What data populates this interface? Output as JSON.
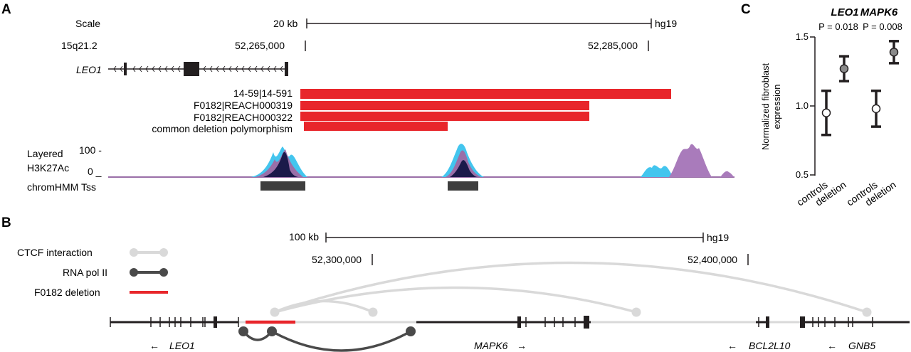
{
  "panel_a": {
    "letter": "A",
    "scale_label": "Scale",
    "scale_bar_text": "20 kb",
    "assembly": "hg19",
    "band": "15q21.2",
    "coord_left": "52,265,000",
    "coord_right": "52,285,000",
    "gene": "LEO1",
    "deletions": [
      {
        "label": "14-59|14-591"
      },
      {
        "label": "F0182|REACH000319"
      },
      {
        "label": "F0182|REACH000322"
      },
      {
        "label": "common deletion polymorphism"
      }
    ],
    "track_label_line1": "Layered",
    "track_label_line2": "H3K27Ac",
    "track_max": "100 -",
    "track_min": "0 _",
    "chromhmm_label": "chromHMM Tss",
    "deletion_color": "#e8262b"
  },
  "panel_b": {
    "letter": "B",
    "scale_bar_text": "100 kb",
    "assembly": "hg19",
    "coord_left": "52,300,000",
    "coord_right": "52,400,000",
    "legend": [
      {
        "label": "CTCF interaction",
        "color": "#d9d9d9"
      },
      {
        "label": "RNA pol II",
        "color": "#4a4a4a"
      },
      {
        "label": "F0182 deletion",
        "color": "#e8262b"
      }
    ],
    "genes": [
      {
        "name": "LEO1",
        "arrow": "←"
      },
      {
        "name": "MAPK6",
        "arrow": "→"
      },
      {
        "name": "BCL2L10",
        "arrow": "←"
      },
      {
        "name": "GNB5",
        "arrow": "←"
      }
    ]
  },
  "panel_c": {
    "letter": "C",
    "ylabel_line1": "Normalized fibroblast",
    "ylabel_line2": "expression",
    "y_ticks": [
      "1.5",
      "1.0",
      "0.5"
    ],
    "groups": [
      {
        "gene": "LEO1",
        "pvalue": "P = 0.018"
      },
      {
        "gene": "MAPK6",
        "pvalue": "P = 0.008"
      }
    ],
    "x_labels": [
      "controls",
      "deletion",
      "controls",
      "deletion"
    ]
  },
  "chart_data": {
    "type": "scatter",
    "ylabel": "Normalized fibroblast expression",
    "ylim": [
      0.5,
      1.5
    ],
    "categories": [
      "controls",
      "deletion",
      "controls",
      "deletion"
    ],
    "series": [
      {
        "name": "LEO1",
        "points": [
          {
            "x": "controls",
            "y": 0.95,
            "low": 0.79,
            "high": 1.11
          },
          {
            "x": "deletion",
            "y": 1.27,
            "low": 1.18,
            "high": 1.36
          }
        ]
      },
      {
        "name": "MAPK6",
        "points": [
          {
            "x": "controls",
            "y": 0.98,
            "low": 0.85,
            "high": 1.11
          },
          {
            "x": "deletion",
            "y": 1.39,
            "low": 1.31,
            "high": 1.47
          }
        ]
      }
    ]
  }
}
